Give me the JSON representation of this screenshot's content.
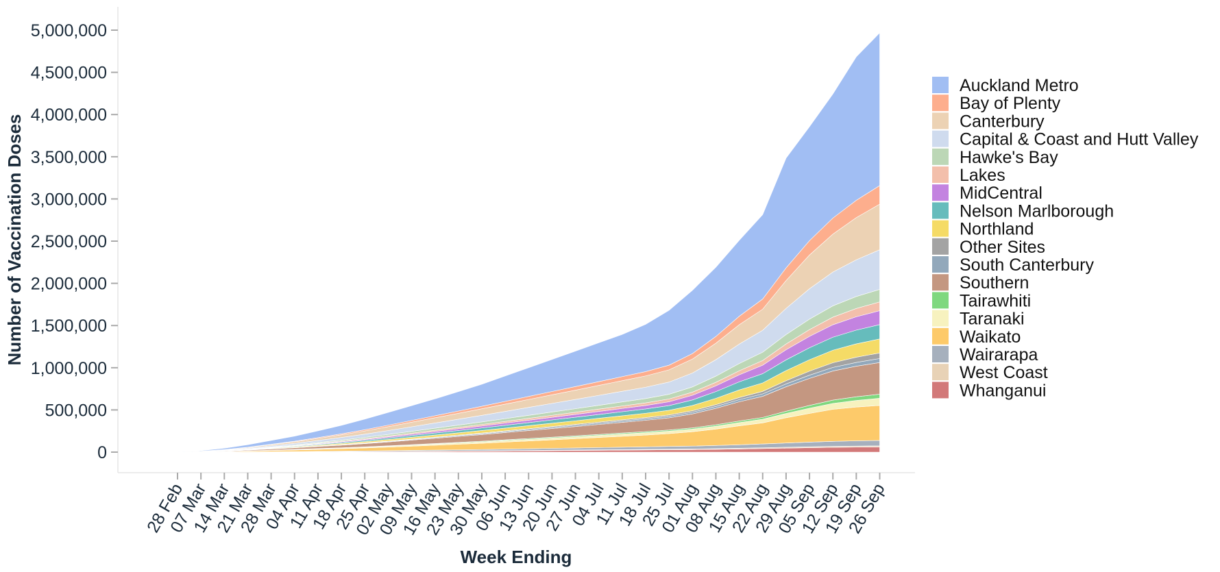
{
  "chart_data": {
    "type": "area",
    "stacked": true,
    "xlabel": "Week Ending",
    "ylabel": "Number of Vaccination Doses",
    "ylim": [
      0,
      5000000
    ],
    "y_ticks": [
      0,
      500000,
      1000000,
      1500000,
      2000000,
      2500000,
      3000000,
      3500000,
      4000000,
      4500000,
      5000000
    ],
    "y_tick_labels": [
      "0",
      "500,000",
      "1,000,000",
      "1,500,000",
      "2,000,000",
      "2,500,000",
      "3,000,000",
      "3,500,000",
      "4,000,000",
      "4,500,000",
      "5,000,000"
    ],
    "x": [
      "28 Feb",
      "07 Mar",
      "14 Mar",
      "21 Mar",
      "28 Mar",
      "04 Apr",
      "11 Apr",
      "18 Apr",
      "25 Apr",
      "02 May",
      "09 May",
      "16 May",
      "23 May",
      "30 May",
      "06 Jun",
      "13 Jun",
      "20 Jun",
      "27 Jun",
      "04 Jul",
      "11 Jul",
      "18 Jul",
      "25 Jul",
      "01 Aug",
      "08 Aug",
      "15 Aug",
      "22 Aug",
      "29 Aug",
      "05 Sep",
      "12 Sep",
      "19 Sep",
      "26 Sep"
    ],
    "grid": false,
    "legend_position": "right",
    "series": [
      {
        "name": "Whanganui",
        "color": "#d27979",
        "values": [
          0,
          200,
          500,
          1000,
          1500,
          2000,
          3000,
          4000,
          5000,
          6000,
          7500,
          9000,
          10500,
          12000,
          14000,
          16000,
          18000,
          20000,
          22000,
          24000,
          26000,
          28000,
          30000,
          33000,
          37000,
          42000,
          47000,
          52000,
          56000,
          59000,
          61000
        ]
      },
      {
        "name": "West Coast",
        "color": "#e8d2b6",
        "values": [
          0,
          50,
          100,
          200,
          400,
          600,
          800,
          1000,
          1300,
          1600,
          2000,
          2400,
          2800,
          3200,
          3700,
          4200,
          4700,
          5200,
          5700,
          6200,
          6700,
          7200,
          7700,
          8300,
          9000,
          9800,
          10700,
          11600,
          12400,
          13000,
          13500
        ]
      },
      {
        "name": "Wairarapa",
        "color": "#a6b0bd",
        "values": [
          0,
          300,
          800,
          1500,
          2500,
          3500,
          5000,
          6500,
          8000,
          9500,
          11000,
          12500,
          14000,
          16000,
          18000,
          20000,
          22000,
          24000,
          26000,
          28000,
          30000,
          32000,
          34000,
          37000,
          41000,
          45000,
          50000,
          55000,
          59000,
          62000,
          64000
        ]
      },
      {
        "name": "Waikato",
        "color": "#fdca6a",
        "values": [
          0,
          2000,
          5000,
          9000,
          14000,
          19000,
          24000,
          29000,
          35000,
          42000,
          50000,
          58000,
          66000,
          74000,
          83000,
          92000,
          101000,
          110000,
          120000,
          130000,
          140000,
          152000,
          170000,
          195000,
          225000,
          250000,
          300000,
          340000,
          380000,
          400000,
          415000
        ]
      },
      {
        "name": "Taranaki",
        "color": "#f7f2bf",
        "values": [
          0,
          500,
          1200,
          2200,
          3500,
          5000,
          6500,
          8000,
          9500,
          11000,
          12500,
          14000,
          15500,
          17000,
          18500,
          20000,
          21500,
          23000,
          24500,
          26000,
          27500,
          29000,
          31000,
          34000,
          38000,
          43000,
          51000,
          62000,
          70000,
          78000,
          85000
        ]
      },
      {
        "name": "Tairawhiti",
        "color": "#7fd87f",
        "values": [
          0,
          200,
          500,
          1000,
          1500,
          2000,
          2600,
          3200,
          3800,
          4500,
          5200,
          6000,
          6800,
          7600,
          8400,
          9200,
          10000,
          10800,
          11600,
          12400,
          13200,
          14000,
          15000,
          16500,
          18500,
          21000,
          26000,
          33000,
          39000,
          44000,
          48000
        ]
      },
      {
        "name": "Southern",
        "color": "#c49781",
        "values": [
          0,
          2000,
          5000,
          9000,
          14000,
          19000,
          25000,
          31000,
          38000,
          46000,
          54000,
          62000,
          70000,
          78000,
          86000,
          94000,
          102000,
          110000,
          118000,
          126000,
          134000,
          144000,
          165000,
          195000,
          228000,
          250000,
          290000,
          320000,
          345000,
          362000,
          375000
        ]
      },
      {
        "name": "South Canterbury",
        "color": "#92a8bb",
        "values": [
          0,
          300,
          700,
          1300,
          2000,
          2800,
          3600,
          4500,
          5500,
          6500,
          7500,
          8500,
          9500,
          10500,
          11500,
          12500,
          13500,
          14500,
          15500,
          16500,
          17500,
          18500,
          20000,
          22500,
          25500,
          29000,
          33500,
          38000,
          42000,
          45000,
          47500
        ]
      },
      {
        "name": "Other Sites",
        "color": "#a3a3a3",
        "values": [
          0,
          100,
          300,
          600,
          1000,
          1500,
          2100,
          2800,
          3500,
          4300,
          5100,
          6000,
          6900,
          7800,
          8800,
          9800,
          10800,
          11800,
          12800,
          13800,
          14800,
          16000,
          18000,
          21000,
          25000,
          30000,
          38000,
          48000,
          56000,
          62000,
          66000
        ]
      },
      {
        "name": "Northland",
        "color": "#f5db66",
        "values": [
          0,
          800,
          2000,
          3500,
          5500,
          7500,
          10000,
          12500,
          15000,
          18000,
          21000,
          24000,
          27000,
          30000,
          33000,
          36000,
          39000,
          42000,
          45000,
          48000,
          51000,
          55000,
          62000,
          75000,
          90000,
          100000,
          120000,
          135000,
          148000,
          158000,
          166000
        ]
      },
      {
        "name": "Nelson Marlborough",
        "color": "#66bcbc",
        "values": [
          0,
          500,
          1500,
          3000,
          5000,
          7000,
          9500,
          12000,
          15000,
          18000,
          21000,
          24000,
          27000,
          30000,
          33000,
          36000,
          39000,
          42000,
          45000,
          48000,
          51000,
          56000,
          66000,
          80000,
          96000,
          110000,
          127000,
          142000,
          154000,
          163000,
          170000
        ]
      },
      {
        "name": "MidCentral",
        "color": "#c383e0",
        "values": [
          0,
          300,
          1000,
          2000,
          3500,
          5000,
          7000,
          9000,
          11000,
          13500,
          16000,
          18500,
          21000,
          23500,
          26000,
          28500,
          31000,
          33500,
          36000,
          38500,
          41000,
          45000,
          55000,
          68000,
          83000,
          100000,
          120000,
          135000,
          148000,
          158000,
          165000
        ]
      },
      {
        "name": "Lakes",
        "color": "#f3bfab",
        "values": [
          0,
          300,
          900,
          1800,
          3000,
          4300,
          5800,
          7300,
          9000,
          10700,
          12500,
          14300,
          16100,
          18000,
          19900,
          21800,
          23700,
          25600,
          27500,
          29400,
          31300,
          33500,
          37000,
          42000,
          48000,
          56000,
          68000,
          80000,
          90000,
          98000,
          104000
        ]
      },
      {
        "name": "Hawke's Bay",
        "color": "#bcd7b6",
        "values": [
          0,
          500,
          1500,
          3000,
          5000,
          7000,
          9500,
          12000,
          15000,
          18000,
          21000,
          24000,
          27000,
          30000,
          33000,
          36000,
          39000,
          42000,
          45000,
          48000,
          51000,
          55000,
          62000,
          73000,
          86000,
          98000,
          112000,
          124000,
          134000,
          142000,
          148000
        ]
      },
      {
        "name": "Capital & Coast and Hutt Valley",
        "color": "#cfdbee",
        "values": [
          0,
          1500,
          4000,
          8000,
          13000,
          18000,
          24000,
          31000,
          38000,
          46000,
          54000,
          62000,
          70000,
          78000,
          86000,
          94000,
          102000,
          110000,
          118000,
          126000,
          134000,
          145000,
          165000,
          195000,
          230000,
          260000,
          310000,
          360000,
          400000,
          435000,
          470000
        ]
      },
      {
        "name": "Canterbury",
        "color": "#ecd2b4",
        "values": [
          0,
          1500,
          4000,
          8000,
          13000,
          18000,
          24000,
          31000,
          38000,
          46000,
          54000,
          62000,
          70000,
          78000,
          86000,
          94000,
          102000,
          110000,
          118000,
          126000,
          134000,
          145000,
          165000,
          195000,
          230000,
          250000,
          330000,
          400000,
          450000,
          500000,
          540000
        ]
      },
      {
        "name": "Bay of Plenty",
        "color": "#fdae8d",
        "values": [
          0,
          500,
          1500,
          3000,
          5000,
          7000,
          9500,
          12000,
          15000,
          18000,
          21000,
          24000,
          27000,
          30000,
          33000,
          36000,
          39000,
          42000,
          45000,
          48000,
          51000,
          55000,
          65000,
          80000,
          100000,
          120000,
          150000,
          170000,
          190000,
          205000,
          220000
        ]
      },
      {
        "name": "Auckland Metro",
        "color": "#a1bef3",
        "values": [
          0,
          6000,
          16000,
          30000,
          45000,
          60000,
          80000,
          100000,
          125000,
          150000,
          175000,
          200000,
          230000,
          260000,
          300000,
          340000,
          380000,
          420000,
          460000,
          500000,
          560000,
          650000,
          750000,
          820000,
          900000,
          1000000,
          1300000,
          1350000,
          1470000,
          1700000,
          1810000
        ]
      }
    ]
  },
  "legend": {
    "items": [
      {
        "label": "Auckland Metro",
        "color": "#a1bef3"
      },
      {
        "label": "Bay of Plenty",
        "color": "#fdae8d"
      },
      {
        "label": "Canterbury",
        "color": "#ecd2b4"
      },
      {
        "label": "Capital & Coast and Hutt Valley",
        "color": "#cfdbee"
      },
      {
        "label": "Hawke's Bay",
        "color": "#bcd7b6"
      },
      {
        "label": "Lakes",
        "color": "#f3bfab"
      },
      {
        "label": "MidCentral",
        "color": "#c383e0"
      },
      {
        "label": "Nelson Marlborough",
        "color": "#66bcbc"
      },
      {
        "label": "Northland",
        "color": "#f5db66"
      },
      {
        "label": "Other Sites",
        "color": "#a3a3a3"
      },
      {
        "label": "South Canterbury",
        "color": "#92a8bb"
      },
      {
        "label": "Southern",
        "color": "#c49781"
      },
      {
        "label": "Tairawhiti",
        "color": "#7fd87f"
      },
      {
        "label": "Taranaki",
        "color": "#f7f2bf"
      },
      {
        "label": "Waikato",
        "color": "#fdca6a"
      },
      {
        "label": "Wairarapa",
        "color": "#a6b0bd"
      },
      {
        "label": "West Coast",
        "color": "#e8d2b6"
      },
      {
        "label": "Whanganui",
        "color": "#d27979"
      }
    ]
  }
}
